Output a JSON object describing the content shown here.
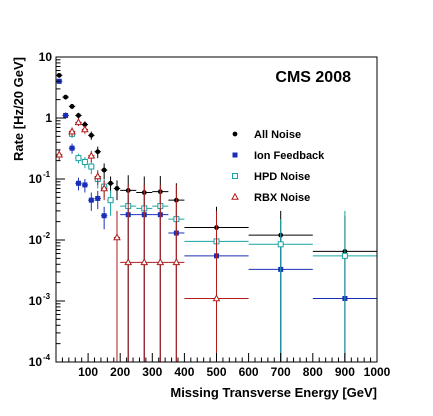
{
  "chart_data": {
    "type": "scatter",
    "title": "",
    "label": "CMS 2008",
    "xlabel": "Missing Transverse Energy [GeV]",
    "ylabel": "Rate [Hz/20 GeV]",
    "xlim": [
      0,
      1000
    ],
    "ylim": [
      0.0001,
      10
    ],
    "yscale": "log",
    "x_ticks": [
      100,
      200,
      300,
      400,
      500,
      600,
      700,
      800,
      900,
      1000
    ],
    "y_ticks": [
      {
        "base": "10",
        "exp": "-4",
        "value": 0.0001
      },
      {
        "base": "10",
        "exp": "-3",
        "value": 0.001
      },
      {
        "base": "10",
        "exp": "-2",
        "value": 0.01
      },
      {
        "base": "10",
        "exp": "-1",
        "value": 0.1
      },
      {
        "base": "1",
        "exp": "",
        "value": 1
      },
      {
        "base": "10",
        "exp": "",
        "value": 10
      }
    ],
    "legend_position": "right",
    "series": [
      {
        "name": "All Noise",
        "marker": "dot",
        "color": "#000000",
        "points": [
          {
            "x": 10,
            "y": 5.0,
            "xlo": 0,
            "xhi": 20,
            "ylo": 4.6,
            "yhi": 5.4
          },
          {
            "x": 30,
            "y": 2.2,
            "xlo": 20,
            "xhi": 40,
            "ylo": 2.0,
            "yhi": 2.4
          },
          {
            "x": 50,
            "y": 1.55,
            "xlo": 40,
            "xhi": 60,
            "ylo": 1.4,
            "yhi": 1.7
          },
          {
            "x": 70,
            "y": 1.1,
            "xlo": 60,
            "xhi": 80,
            "ylo": 0.98,
            "yhi": 1.22
          },
          {
            "x": 90,
            "y": 0.78,
            "xlo": 80,
            "xhi": 100,
            "ylo": 0.68,
            "yhi": 0.88
          },
          {
            "x": 110,
            "y": 0.52,
            "xlo": 100,
            "xhi": 120,
            "ylo": 0.44,
            "yhi": 0.6
          },
          {
            "x": 130,
            "y": 0.28,
            "xlo": 120,
            "xhi": 140,
            "ylo": 0.22,
            "yhi": 0.34
          },
          {
            "x": 150,
            "y": 0.14,
            "xlo": 140,
            "xhi": 160,
            "ylo": 0.1,
            "yhi": 0.18
          },
          {
            "x": 170,
            "y": 0.085,
            "xlo": 160,
            "xhi": 180,
            "ylo": 0.06,
            "yhi": 0.11
          },
          {
            "x": 190,
            "y": 0.07,
            "xlo": 180,
            "xhi": 200,
            "ylo": 0.045,
            "yhi": 0.095
          },
          {
            "x": 225,
            "y": 0.065,
            "xlo": 200,
            "xhi": 250,
            "ylo": 0.0001,
            "yhi": 0.115
          },
          {
            "x": 275,
            "y": 0.06,
            "xlo": 250,
            "xhi": 300,
            "ylo": 0.0001,
            "yhi": 0.11
          },
          {
            "x": 325,
            "y": 0.062,
            "xlo": 300,
            "xhi": 350,
            "ylo": 0.0001,
            "yhi": 0.112
          },
          {
            "x": 375,
            "y": 0.045,
            "xlo": 350,
            "xhi": 400,
            "ylo": 0.0001,
            "yhi": 0.085
          },
          {
            "x": 500,
            "y": 0.016,
            "xlo": 400,
            "xhi": 600,
            "ylo": 0.0001,
            "yhi": 0.035
          },
          {
            "x": 700,
            "y": 0.012,
            "xlo": 600,
            "xhi": 800,
            "ylo": 0.0001,
            "yhi": 0.03
          },
          {
            "x": 900,
            "y": 0.0065,
            "xlo": 800,
            "xhi": 1000,
            "ylo": 0.0001,
            "yhi": 0.025
          }
        ]
      },
      {
        "name": "Ion Feedback",
        "marker": "square",
        "color": "#1a2fb8",
        "points": [
          {
            "x": 10,
            "y": 4.0,
            "xlo": 0,
            "xhi": 20,
            "ylo": 3.6,
            "yhi": 4.4
          },
          {
            "x": 30,
            "y": 1.1,
            "xlo": 20,
            "xhi": 40,
            "ylo": 0.96,
            "yhi": 1.24
          },
          {
            "x": 50,
            "y": 0.32,
            "xlo": 40,
            "xhi": 60,
            "ylo": 0.26,
            "yhi": 0.38
          },
          {
            "x": 70,
            "y": 0.085,
            "xlo": 60,
            "xhi": 80,
            "ylo": 0.065,
            "yhi": 0.105
          },
          {
            "x": 90,
            "y": 0.08,
            "xlo": 80,
            "xhi": 100,
            "ylo": 0.06,
            "yhi": 0.1
          },
          {
            "x": 110,
            "y": 0.045,
            "xlo": 100,
            "xhi": 120,
            "ylo": 0.03,
            "yhi": 0.06
          },
          {
            "x": 130,
            "y": 0.048,
            "xlo": 120,
            "xhi": 140,
            "ylo": 0.032,
            "yhi": 0.064
          },
          {
            "x": 150,
            "y": 0.025,
            "xlo": 140,
            "xhi": 160,
            "ylo": 0.015,
            "yhi": 0.035
          },
          {
            "x": 225,
            "y": 0.026,
            "xlo": 200,
            "xhi": 250,
            "ylo": 0.0001,
            "yhi": 0.05
          },
          {
            "x": 275,
            "y": 0.026,
            "xlo": 250,
            "xhi": 300,
            "ylo": 0.0001,
            "yhi": 0.05
          },
          {
            "x": 325,
            "y": 0.026,
            "xlo": 300,
            "xhi": 350,
            "ylo": 0.0001,
            "yhi": 0.05
          },
          {
            "x": 375,
            "y": 0.013,
            "xlo": 350,
            "xhi": 400,
            "ylo": 0.0001,
            "yhi": 0.03
          },
          {
            "x": 500,
            "y": 0.0055,
            "xlo": 400,
            "xhi": 600,
            "ylo": 0.0001,
            "yhi": 0.015
          },
          {
            "x": 700,
            "y": 0.0033,
            "xlo": 600,
            "xhi": 800,
            "ylo": 0.0001,
            "yhi": 0.012
          },
          {
            "x": 900,
            "y": 0.0011,
            "xlo": 800,
            "xhi": 1000,
            "ylo": 0.0001,
            "yhi": 0.006
          }
        ]
      },
      {
        "name": "HPD Noise",
        "marker": "open-square",
        "color": "#1aa3a3",
        "points": [
          {
            "x": 50,
            "y": 0.55,
            "xlo": 40,
            "xhi": 60,
            "ylo": 0.47,
            "yhi": 0.63
          },
          {
            "x": 70,
            "y": 0.22,
            "xlo": 60,
            "xhi": 80,
            "ylo": 0.18,
            "yhi": 0.26
          },
          {
            "x": 90,
            "y": 0.19,
            "xlo": 80,
            "xhi": 100,
            "ylo": 0.15,
            "yhi": 0.23
          },
          {
            "x": 110,
            "y": 0.16,
            "xlo": 100,
            "xhi": 120,
            "ylo": 0.12,
            "yhi": 0.2
          },
          {
            "x": 130,
            "y": 0.1,
            "xlo": 120,
            "xhi": 140,
            "ylo": 0.07,
            "yhi": 0.13
          },
          {
            "x": 150,
            "y": 0.075,
            "xlo": 140,
            "xhi": 160,
            "ylo": 0.05,
            "yhi": 0.1
          },
          {
            "x": 170,
            "y": 0.045,
            "xlo": 160,
            "xhi": 180,
            "ylo": 0.025,
            "yhi": 0.065
          },
          {
            "x": 225,
            "y": 0.036,
            "xlo": 200,
            "xhi": 250,
            "ylo": 0.0001,
            "yhi": 0.07
          },
          {
            "x": 275,
            "y": 0.033,
            "xlo": 250,
            "xhi": 300,
            "ylo": 0.0001,
            "yhi": 0.065
          },
          {
            "x": 325,
            "y": 0.036,
            "xlo": 300,
            "xhi": 350,
            "ylo": 0.0001,
            "yhi": 0.07
          },
          {
            "x": 375,
            "y": 0.022,
            "xlo": 350,
            "xhi": 400,
            "ylo": 0.0001,
            "yhi": 0.045
          },
          {
            "x": 500,
            "y": 0.0095,
            "xlo": 400,
            "xhi": 600,
            "ylo": 0.0001,
            "yhi": 0.025
          },
          {
            "x": 700,
            "y": 0.0085,
            "xlo": 600,
            "xhi": 800,
            "ylo": 0.0001,
            "yhi": 0.022
          },
          {
            "x": 900,
            "y": 0.0055,
            "xlo": 800,
            "xhi": 1000,
            "ylo": 0.0001,
            "yhi": 0.03
          }
        ]
      },
      {
        "name": "RBX Noise",
        "marker": "open-triangle",
        "color": "#b31a1a",
        "points": [
          {
            "x": 10,
            "y": 0.25,
            "xlo": 0,
            "xhi": 20,
            "ylo": 0.2,
            "yhi": 0.3
          },
          {
            "x": 50,
            "y": 0.6,
            "xlo": 40,
            "xhi": 60,
            "ylo": 0.5,
            "yhi": 0.7
          },
          {
            "x": 70,
            "y": 0.85,
            "xlo": 60,
            "xhi": 80,
            "ylo": 0.74,
            "yhi": 0.96
          },
          {
            "x": 90,
            "y": 0.65,
            "xlo": 80,
            "xhi": 100,
            "ylo": 0.55,
            "yhi": 0.75
          },
          {
            "x": 110,
            "y": 0.24,
            "xlo": 100,
            "xhi": 120,
            "ylo": 0.19,
            "yhi": 0.29
          },
          {
            "x": 130,
            "y": 0.11,
            "xlo": 120,
            "xhi": 140,
            "ylo": 0.08,
            "yhi": 0.14
          },
          {
            "x": 150,
            "y": 0.07,
            "xlo": 140,
            "xhi": 160,
            "ylo": 0.045,
            "yhi": 0.095
          },
          {
            "x": 190,
            "y": 0.011,
            "xlo": 180,
            "xhi": 200,
            "ylo": 0.0001,
            "yhi": 0.03
          },
          {
            "x": 225,
            "y": 0.0043,
            "xlo": 200,
            "xhi": 250,
            "ylo": 0.0001,
            "yhi": 0.08
          },
          {
            "x": 275,
            "y": 0.0043,
            "xlo": 250,
            "xhi": 300,
            "ylo": 0.0001,
            "yhi": 0.08
          },
          {
            "x": 325,
            "y": 0.0043,
            "xlo": 300,
            "xhi": 350,
            "ylo": 0.0001,
            "yhi": 0.08
          },
          {
            "x": 375,
            "y": 0.0043,
            "xlo": 350,
            "xhi": 400,
            "ylo": 0.0001,
            "yhi": 0.08
          },
          {
            "x": 500,
            "y": 0.0011,
            "xlo": 400,
            "xhi": 600,
            "ylo": 0.0001,
            "yhi": 0.03
          }
        ]
      }
    ]
  }
}
